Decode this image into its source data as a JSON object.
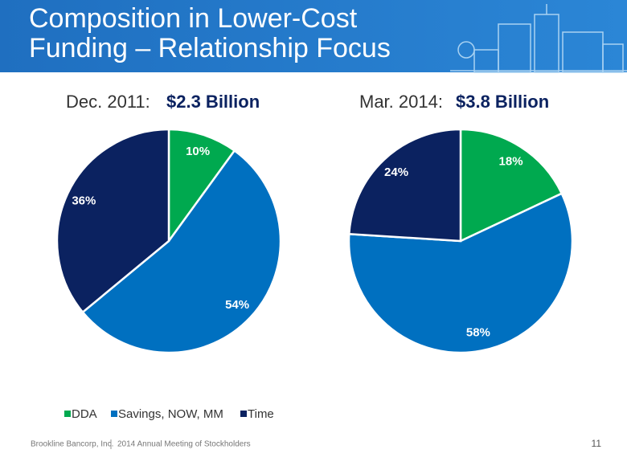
{
  "slide": {
    "title_lines": [
      "Composition in Lower-Cost",
      "Funding – Relationship Focus"
    ],
    "footer": {
      "company": "Brookline Bancorp, Inc.",
      "event": "2014 Annual Meeting of Stockholders",
      "page": "11"
    }
  },
  "chart_data": [
    {
      "type": "pie",
      "title": "Dec. 2011:",
      "subtitle": "$2.3 Billion",
      "categories": [
        "DDA",
        "Savings, NOW, MM",
        "Time"
      ],
      "values": [
        10,
        54,
        36
      ],
      "value_labels": [
        "10%",
        "54%",
        "36%"
      ],
      "colors": [
        "#00a94f",
        "#0070c0",
        "#0b2260"
      ]
    },
    {
      "type": "pie",
      "title": "Mar. 2014:",
      "subtitle": "$3.8 Billion",
      "categories": [
        "DDA",
        "Savings, NOW, MM",
        "Time"
      ],
      "values": [
        18,
        58,
        24
      ],
      "value_labels": [
        "18%",
        "58%",
        "24%"
      ],
      "colors": [
        "#00a94f",
        "#0070c0",
        "#0b2260"
      ]
    }
  ]
}
